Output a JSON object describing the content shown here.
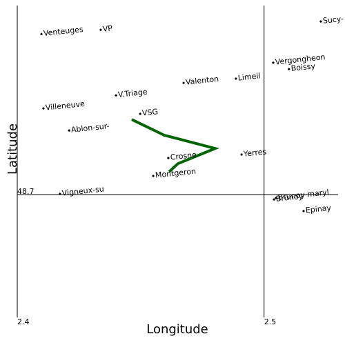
{
  "chart_data": {
    "type": "scatter",
    "x_label": "Longitude",
    "y_label": "Latitude",
    "xlim": [
      2.4,
      2.53
    ],
    "ylim": [
      48.65,
      48.777
    ],
    "xticks": [
      2.4,
      2.5
    ],
    "yticks": [
      48.7
    ],
    "point_color": "#000000",
    "points": {
      "labels": [
        "Venteuges",
        "VP",
        "Sucy-",
        "Vergongheon",
        "Boissy",
        "Limeil",
        "Valenton",
        "V.Triage",
        "Villeneuve",
        "VSG",
        "Ablon-sur-",
        "Yerres",
        "Crosne",
        "Montgeron",
        "Vigneux-su",
        "Brunoy",
        "Brunoy maryl",
        "Epinay"
      ],
      "x": [
        2.4098,
        2.4338,
        2.523,
        2.5037,
        2.5101,
        2.4886,
        2.4674,
        2.44,
        2.4106,
        2.4498,
        2.421,
        2.4909,
        2.4612,
        2.4551,
        2.4173,
        2.504,
        2.5048,
        2.516
      ],
      "y": [
        48.7654,
        48.7671,
        48.7705,
        48.7537,
        48.7511,
        48.7472,
        48.7455,
        48.7404,
        48.7351,
        48.7329,
        48.7261,
        48.7163,
        48.7149,
        48.7076,
        48.7003,
        48.698,
        48.6986,
        48.6933
      ]
    },
    "track": {
      "color": "#006400",
      "x": [
        2.4464,
        2.4595,
        2.4802,
        2.4651,
        2.4615
      ],
      "y": [
        48.7306,
        48.7242,
        48.7188,
        48.7126,
        48.7093
      ]
    }
  }
}
